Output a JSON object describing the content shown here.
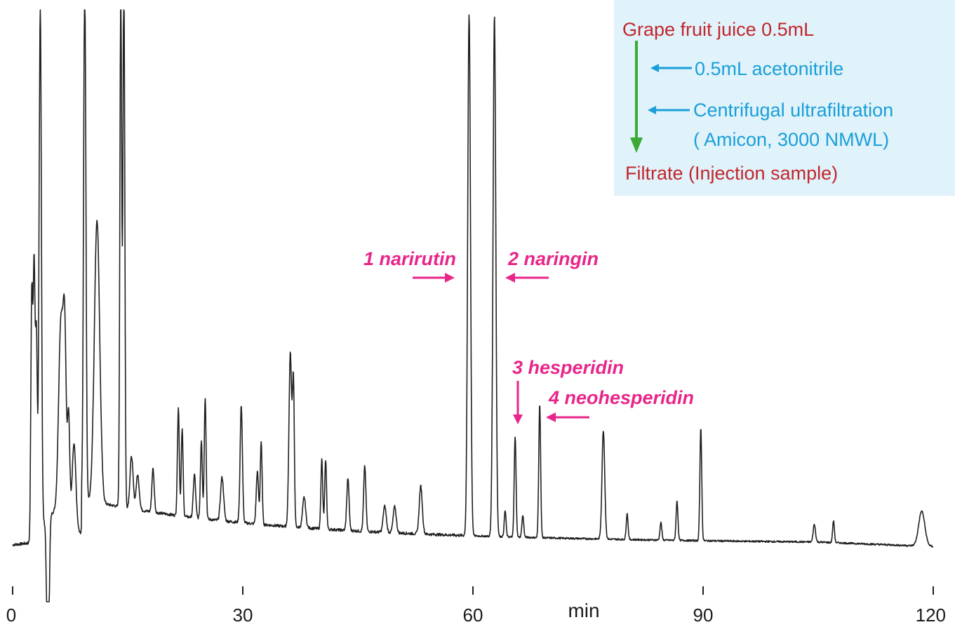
{
  "colors": {
    "trace": "#231f20",
    "peak_label": "#e8268a",
    "flow_sample": "#c1272d",
    "flow_reagent": "#1a9fd9",
    "flow_arrow": "#3aaa35",
    "flow_box": "#e0f2fa"
  },
  "chart_data": {
    "type": "line",
    "x_unit": "min",
    "xlim": [
      0,
      120
    ],
    "x_ticks": [
      "0",
      "30",
      "60",
      "90",
      "120"
    ],
    "grid": false,
    "peak_labels": [
      {
        "text": "1 narirutin",
        "x": 59.5
      },
      {
        "text": "2 naringin",
        "x": 62.8
      },
      {
        "text": "3 hesperidin",
        "x": 65.5
      },
      {
        "text": "4 neohesperidin",
        "x": 68.7
      }
    ],
    "peaks": [
      {
        "x": 2.5,
        "h": 0.55,
        "w": 0.12
      },
      {
        "x": 2.8,
        "h": 0.6,
        "w": 0.12
      },
      {
        "x": 3.1,
        "h": 0.45,
        "w": 0.12
      },
      {
        "x": 3.6,
        "h": 1.2,
        "w": 0.15
      },
      {
        "x": 4.6,
        "h": -0.42,
        "w": 0.15
      },
      {
        "x": 6.3,
        "h": 0.45,
        "w": 0.3
      },
      {
        "x": 6.8,
        "h": 0.38,
        "w": 0.2
      },
      {
        "x": 7.3,
        "h": 0.25,
        "w": 0.15
      },
      {
        "x": 8.0,
        "h": 0.2,
        "w": 0.25
      },
      {
        "x": 9.4,
        "h": 1.2,
        "w": 0.15
      },
      {
        "x": 11.0,
        "h": 0.65,
        "w": 0.35
      },
      {
        "x": 14.1,
        "h": 1.2,
        "w": 0.12
      },
      {
        "x": 14.5,
        "h": 1.2,
        "w": 0.12
      },
      {
        "x": 15.5,
        "h": 0.12,
        "w": 0.2
      },
      {
        "x": 16.3,
        "h": 0.08,
        "w": 0.2
      },
      {
        "x": 18.3,
        "h": 0.1,
        "w": 0.15
      },
      {
        "x": 21.6,
        "h": 0.25,
        "w": 0.12
      },
      {
        "x": 22.1,
        "h": 0.2,
        "w": 0.12
      },
      {
        "x": 23.7,
        "h": 0.1,
        "w": 0.15
      },
      {
        "x": 24.6,
        "h": 0.18,
        "w": 0.12
      },
      {
        "x": 25.1,
        "h": 0.28,
        "w": 0.12
      },
      {
        "x": 27.3,
        "h": 0.1,
        "w": 0.2
      },
      {
        "x": 29.8,
        "h": 0.27,
        "w": 0.15
      },
      {
        "x": 31.9,
        "h": 0.12,
        "w": 0.15
      },
      {
        "x": 32.4,
        "h": 0.19,
        "w": 0.12
      },
      {
        "x": 36.2,
        "h": 0.4,
        "w": 0.18
      },
      {
        "x": 36.6,
        "h": 0.32,
        "w": 0.12
      },
      {
        "x": 38.0,
        "h": 0.07,
        "w": 0.2
      },
      {
        "x": 40.3,
        "h": 0.16,
        "w": 0.12
      },
      {
        "x": 40.8,
        "h": 0.16,
        "w": 0.12
      },
      {
        "x": 43.7,
        "h": 0.12,
        "w": 0.15
      },
      {
        "x": 45.9,
        "h": 0.15,
        "w": 0.15
      },
      {
        "x": 48.5,
        "h": 0.06,
        "w": 0.2
      },
      {
        "x": 49.8,
        "h": 0.06,
        "w": 0.2
      },
      {
        "x": 53.2,
        "h": 0.11,
        "w": 0.2
      },
      {
        "x": 59.5,
        "h": 1.2,
        "w": 0.18
      },
      {
        "x": 62.8,
        "h": 1.2,
        "w": 0.18
      },
      {
        "x": 64.2,
        "h": 0.06,
        "w": 0.12
      },
      {
        "x": 65.5,
        "h": 0.23,
        "w": 0.12
      },
      {
        "x": 66.5,
        "h": 0.05,
        "w": 0.12
      },
      {
        "x": 68.7,
        "h": 0.31,
        "w": 0.12
      },
      {
        "x": 77.0,
        "h": 0.25,
        "w": 0.18
      },
      {
        "x": 80.1,
        "h": 0.06,
        "w": 0.12
      },
      {
        "x": 84.5,
        "h": 0.04,
        "w": 0.12
      },
      {
        "x": 86.6,
        "h": 0.09,
        "w": 0.12
      },
      {
        "x": 89.7,
        "h": 0.26,
        "w": 0.12
      },
      {
        "x": 104.5,
        "h": 0.04,
        "w": 0.15
      },
      {
        "x": 107.0,
        "h": 0.05,
        "w": 0.12
      },
      {
        "x": 118.5,
        "h": 0.08,
        "w": 0.4
      }
    ]
  },
  "flowchart": {
    "start": "Grape fruit juice 0.5mL",
    "step1": "0.5mL acetonitrile",
    "step2_line1": "Centrifugal ultrafiltration",
    "step2_line2": "( Amicon, 3000 NMWL)",
    "end": "Filtrate (Injection sample)"
  }
}
